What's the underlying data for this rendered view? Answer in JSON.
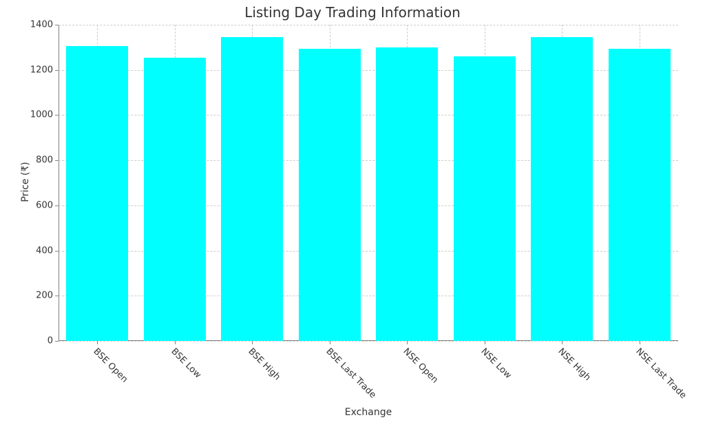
{
  "chart": {
    "type": "bar",
    "title": "Listing Day Trading Information",
    "title_fontsize": 20,
    "xlabel": "Exchange",
    "ylabel": "Price (₹)",
    "label_fontsize": 14,
    "tick_fontsize": 13,
    "categories": [
      "BSE Open",
      "BSE Low",
      "BSE High",
      "BSE Last Trade",
      "NSE Open",
      "NSE Low",
      "NSE High",
      "NSE Last Trade"
    ],
    "values": [
      1305,
      1255,
      1345,
      1295,
      1300,
      1260,
      1345,
      1295
    ],
    "bar_color": "#00ffff",
    "bar_width": 0.8,
    "background_color": "#ffffff",
    "grid_color": "#cccccc",
    "grid_dash": "dashed",
    "axis_color": "#808080",
    "text_color": "#333333",
    "ylim": [
      0,
      1400
    ],
    "yticks": [
      0,
      200,
      400,
      600,
      800,
      1000,
      1200,
      1400
    ],
    "xtick_rotation": 45,
    "legend": false
  }
}
